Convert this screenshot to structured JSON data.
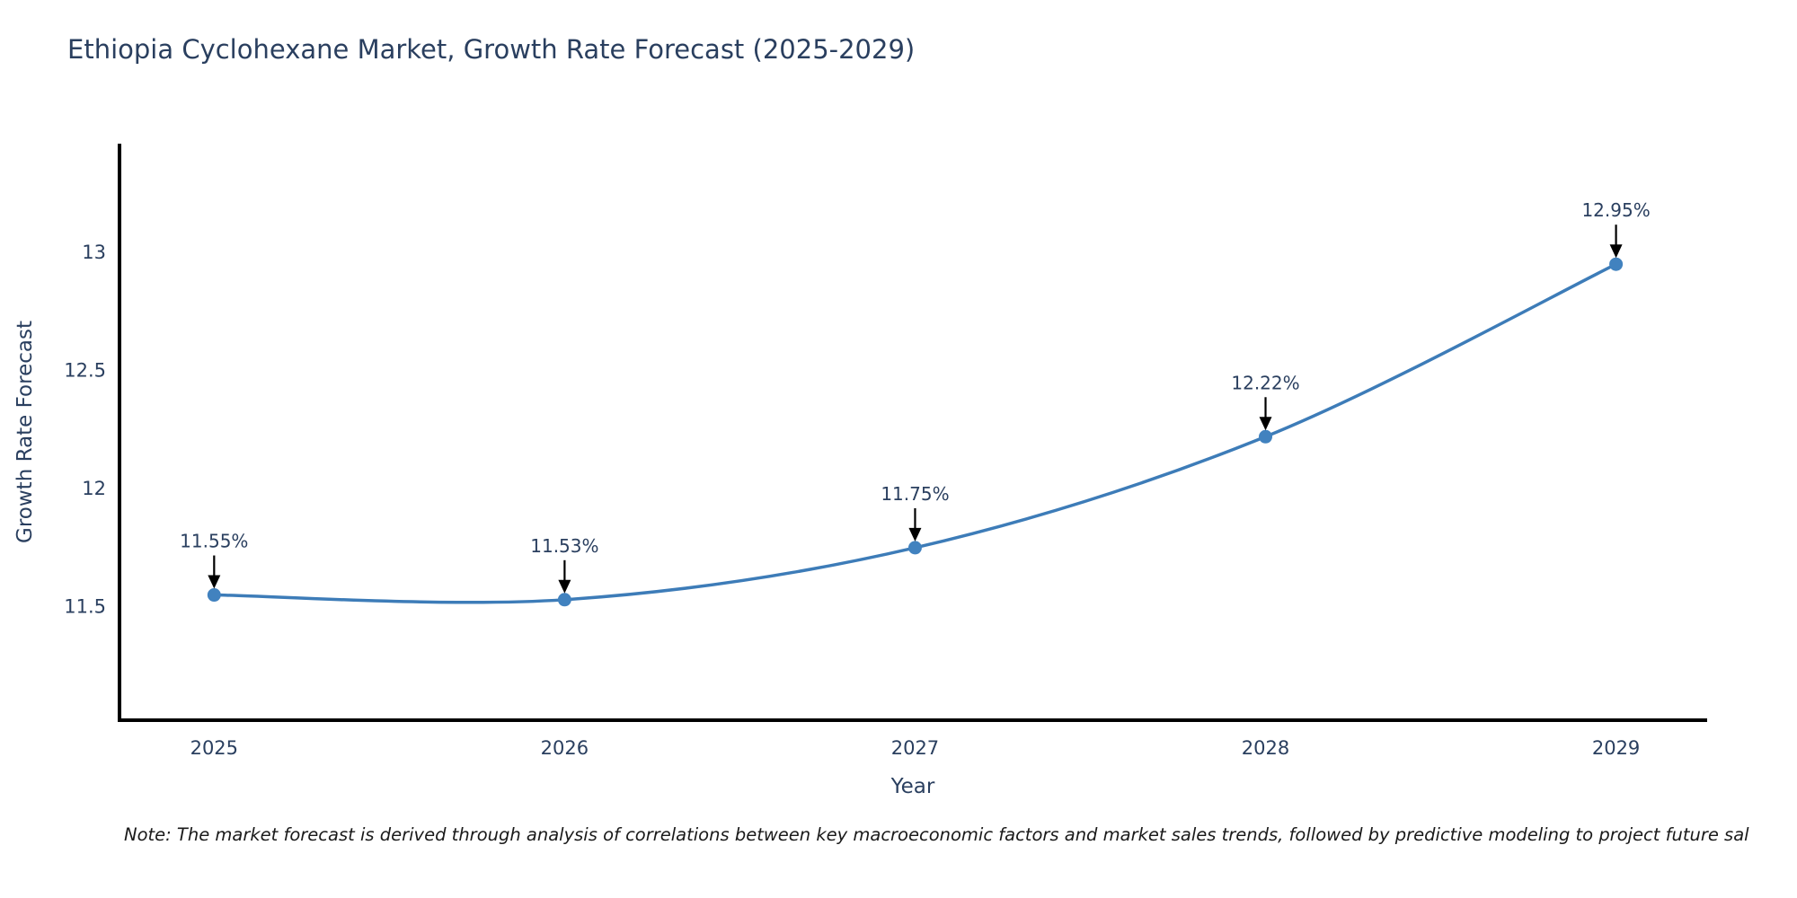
{
  "title": "Ethiopia Cyclohexane Market, Growth Rate Forecast (2025-2029)",
  "note": "Note: The market forecast is derived through analysis of correlations between key macroeconomic factors and market sales trends, followed by predictive modeling to project future sal",
  "chart_data": {
    "type": "line",
    "title": "Ethiopia Cyclohexane Market, Growth Rate Forecast (2025-2029)",
    "xlabel": "Year",
    "ylabel": "Growth Rate Forecast",
    "x": [
      2025,
      2026,
      2027,
      2028,
      2029
    ],
    "values": [
      11.55,
      11.53,
      11.75,
      12.22,
      12.95
    ],
    "point_labels": [
      "11.55%",
      "11.53%",
      "11.75%",
      "12.22%",
      "12.95%"
    ],
    "xtick_labels": [
      "2025",
      "2026",
      "2027",
      "2028",
      "2029"
    ],
    "yticks": [
      11.5,
      12,
      12.5,
      13
    ],
    "ytick_labels": [
      "11.5",
      "12",
      "12.5",
      "13"
    ],
    "xlim": [
      2024.73,
      2029.26
    ],
    "ylim": [
      11.02,
      13.46
    ],
    "grid": false,
    "legend_position": "none",
    "line_color": "#3d7cb8",
    "marker_color": "#4182bf",
    "axis_color": "#000000",
    "tick_text_color": "#2a3f5f",
    "annotation_text_color": "#2a3f5f",
    "annotation_arrow_color": "#000000"
  }
}
